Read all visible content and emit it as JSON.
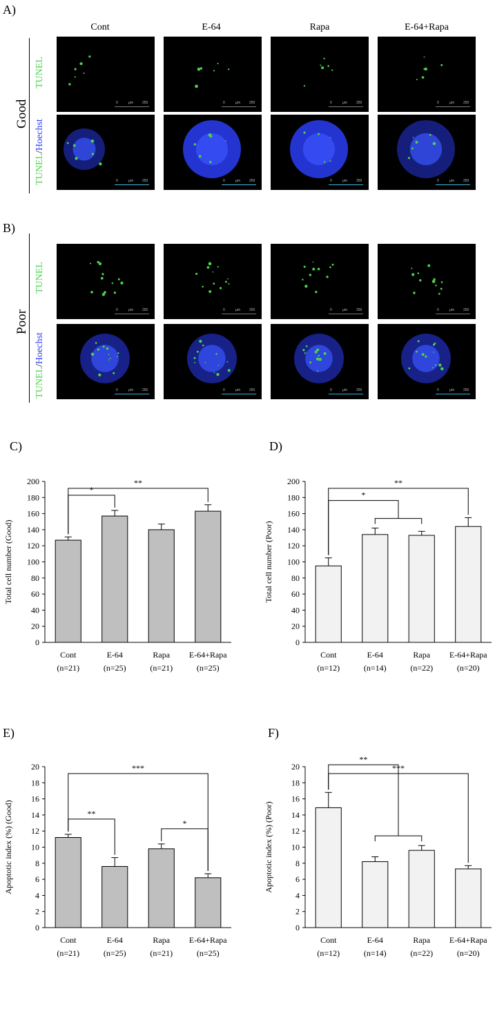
{
  "figure": {
    "panel_labels": {
      "A": "A)",
      "B": "B)",
      "C": "C)",
      "D": "D)",
      "E": "E)",
      "F": "F)"
    },
    "group_labels": [
      "Cont",
      "E-64",
      "Rapa",
      "E-64+Rapa"
    ],
    "row_labels": {
      "good": "Good",
      "poor": "Poor"
    },
    "stain_labels": {
      "tunel": "TUNEL",
      "merge_tunel": "TUNEL",
      "merge_sep": "/",
      "merge_hoechst": "Hoechst"
    },
    "scale_bar": {
      "start": "0",
      "unit": "µm",
      "end": "250"
    },
    "colors": {
      "tunel": "#4cd14c",
      "hoechst": "#2a3df5",
      "bar_good": "#bfbfbf",
      "bar_poor": "#f2f2f2"
    }
  },
  "chart_data": [
    {
      "type": "bar",
      "panel": "C)",
      "categories": [
        "Cont",
        "E-64",
        "Rapa",
        "E-64+Rapa"
      ],
      "n_labels": [
        "(n=21)",
        "(n=25)",
        "(n=21)",
        "(n=25)"
      ],
      "values": [
        127,
        157,
        140,
        163
      ],
      "errors": [
        4,
        7,
        7,
        8
      ],
      "ylabel": "Total cell number (Good)",
      "ylim": [
        0,
        200
      ],
      "yticks": [
        0,
        20,
        40,
        60,
        80,
        100,
        120,
        140,
        160,
        180,
        200
      ],
      "bar_color": "#bfbfbf",
      "significance": [
        {
          "from": 0,
          "to": 1,
          "label": "*"
        },
        {
          "from": 0,
          "to": 3,
          "label": "**"
        }
      ]
    },
    {
      "type": "bar",
      "panel": "D)",
      "categories": [
        "Cont",
        "E-64",
        "Rapa",
        "E-64+Rapa"
      ],
      "n_labels": [
        "(n=12)",
        "(n=14)",
        "(n=22)",
        "(n=20)"
      ],
      "values": [
        95,
        134,
        133,
        144
      ],
      "errors": [
        10,
        8,
        5,
        11
      ],
      "ylabel": "Total cell number (Poor)",
      "ylim": [
        0,
        200
      ],
      "yticks": [
        0,
        20,
        40,
        60,
        80,
        100,
        120,
        140,
        160,
        180,
        200
      ],
      "bar_color": "#f2f2f2",
      "significance": [
        {
          "from": 0,
          "to": [
            1,
            2
          ],
          "label": "*"
        },
        {
          "from": 0,
          "to": 3,
          "label": "**"
        }
      ]
    },
    {
      "type": "bar",
      "panel": "E)",
      "categories": [
        "Cont",
        "E-64",
        "Rapa",
        "E-64+Rapa"
      ],
      "n_labels": [
        "(n=21)",
        "(n=25)",
        "(n=21)",
        "(n=25)"
      ],
      "values": [
        11.2,
        7.6,
        9.8,
        6.2
      ],
      "errors": [
        0.4,
        1.1,
        0.6,
        0.5
      ],
      "ylabel": "Apoptotic index (%) (Good)",
      "ylim": [
        0,
        20
      ],
      "yticks": [
        0,
        2,
        4,
        6,
        8,
        10,
        12,
        14,
        16,
        18,
        20
      ],
      "bar_color": "#bfbfbf",
      "significance": [
        {
          "from": 0,
          "to": 1,
          "label": "**"
        },
        {
          "from": 2,
          "to": 3,
          "label": "*"
        },
        {
          "from": 0,
          "to": 3,
          "label": "***"
        }
      ]
    },
    {
      "type": "bar",
      "panel": "F)",
      "categories": [
        "Cont",
        "E-64",
        "Rapa",
        "E-64+Rapa"
      ],
      "n_labels": [
        "(n=12)",
        "(n=14)",
        "(n=22)",
        "(n=20)"
      ],
      "values": [
        14.9,
        8.2,
        9.6,
        7.3
      ],
      "errors": [
        1.9,
        0.6,
        0.6,
        0.4
      ],
      "ylabel": "Apoptotic index (%) (Poor)",
      "ylim": [
        0,
        20
      ],
      "yticks": [
        0,
        2,
        4,
        6,
        8,
        10,
        12,
        14,
        16,
        18,
        20
      ],
      "bar_color": "#f2f2f2",
      "significance": [
        {
          "from": 0,
          "to": [
            1,
            2
          ],
          "label": "**"
        },
        {
          "from": 0,
          "to": 3,
          "label": "***"
        }
      ]
    }
  ]
}
